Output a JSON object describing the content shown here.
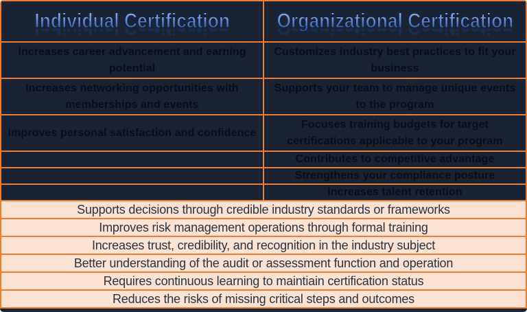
{
  "table": {
    "columns": [
      {
        "header": "Individual Certification",
        "benefits": [
          "Increases career advancement and earning potential",
          "Increases networking opportunities with memberships and events",
          "Improves personal satisfaction and confidence",
          "",
          "",
          ""
        ]
      },
      {
        "header": "Organizational Certification",
        "benefits": [
          "Customizes industry best practices to fit your business",
          "Supports your team to manage unique events to the program",
          "Focuses training budgets for target certifications applicable to your program",
          "Contributes to competitive advantage",
          "Strengthens your compliance posture",
          "Increases talent retention"
        ]
      }
    ],
    "shared_benefits": [
      "Supports decisions through credible industry standards or frameworks",
      "Improves risk management operations through formal training",
      "Increases trust, credibility, and recognition in the industry subject",
      "Better understanding of the audit or assessment function and operation",
      "Requires continuous learning to maintiain certification status",
      "Reduces the risks of missing critical steps and outcomes"
    ],
    "colors": {
      "dark_background": "#1a2333",
      "grid_orange": "#ED7D31",
      "light_background": "#FBE2D2",
      "header_blue_light": "#97B9EE",
      "header_blue_dark": "#27477F",
      "dark_row_text": "#0A0E18",
      "light_row_text": "#2B3442"
    }
  }
}
